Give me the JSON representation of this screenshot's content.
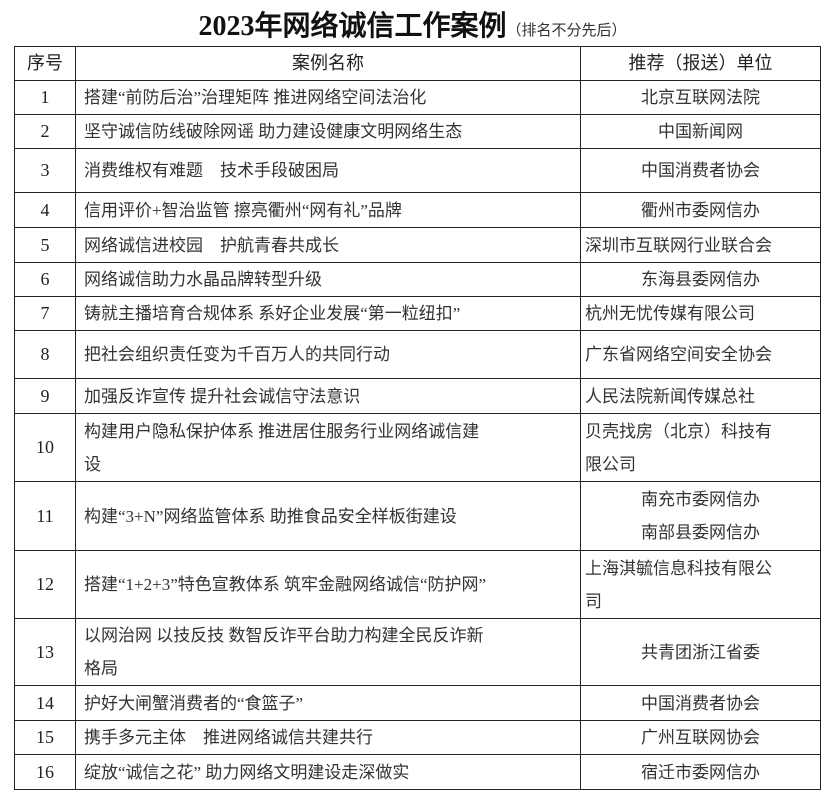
{
  "title": {
    "main": "2023年网络诚信工作案例",
    "sub": "（排名不分先后）"
  },
  "table": {
    "headers": [
      "序号",
      "案例名称",
      "推荐（报送）单位"
    ],
    "rows": [
      {
        "no": "1",
        "name": [
          "搭建“前防后治”治理矩阵 推进网络空间法治化"
        ],
        "unit": [
          "北京互联网法院"
        ]
      },
      {
        "no": "2",
        "name": [
          "坚守诚信防线破除网谣 助力建设健康文明网络生态"
        ],
        "unit": [
          "中国新闻网"
        ]
      },
      {
        "no": "3",
        "name": [
          "消费维权有难题　技术手段破困局"
        ],
        "unit": [
          "中国消费者协会"
        ]
      },
      {
        "no": "4",
        "name": [
          "信用评价+智治监管 擦亮衢州“网有礼”品牌"
        ],
        "unit": [
          "衢州市委网信办"
        ]
      },
      {
        "no": "5",
        "name": [
          "网络诚信进校园　护航青春共成长"
        ],
        "unit": [
          "深圳市互联网行业联合会"
        ]
      },
      {
        "no": "6",
        "name": [
          "网络诚信助力水晶品牌转型升级"
        ],
        "unit": [
          "东海县委网信办"
        ]
      },
      {
        "no": "7",
        "name": [
          "铸就主播培育合规体系 系好企业发展“第一粒纽扣”"
        ],
        "unit": [
          "杭州无忧传媒有限公司"
        ]
      },
      {
        "no": "8",
        "name": [
          "把社会组织责任变为千百万人的共同行动"
        ],
        "unit": [
          "广东省网络空间安全协会"
        ]
      },
      {
        "no": "9",
        "name": [
          "加强反诈宣传 提升社会诚信守法意识"
        ],
        "unit": [
          "人民法院新闻传媒总社"
        ]
      },
      {
        "no": "10",
        "name": [
          "构建用户隐私保护体系 推进居住服务行业网络诚信建",
          "设"
        ],
        "unit": [
          "贝壳找房（北京）科技有",
          "限公司"
        ]
      },
      {
        "no": "11",
        "name": [
          "构建“3+N”网络监管体系 助推食品安全样板街建设"
        ],
        "unit": [
          "南充市委网信办",
          "南部县委网信办"
        ]
      },
      {
        "no": "12",
        "name": [
          "搭建“1+2+3”特色宣教体系 筑牢金融网络诚信“防护网”"
        ],
        "unit": [
          "上海淇毓信息科技有限公",
          "司"
        ]
      },
      {
        "no": "13",
        "name": [
          "以网治网 以技反技 数智反诈平台助力构建全民反诈新",
          "格局"
        ],
        "unit": [
          "共青团浙江省委"
        ]
      },
      {
        "no": "14",
        "name": [
          "护好大闸蟹消费者的“食篮子”"
        ],
        "unit": [
          "中国消费者协会"
        ]
      },
      {
        "no": "15",
        "name": [
          "携手多元主体　推进网络诚信共建共行"
        ],
        "unit": [
          "广州互联网协会"
        ]
      },
      {
        "no": "16",
        "name": [
          "绽放“诚信之花” 助力网络文明建设走深做实"
        ],
        "unit": [
          "宿迁市委网信办"
        ]
      }
    ]
  }
}
